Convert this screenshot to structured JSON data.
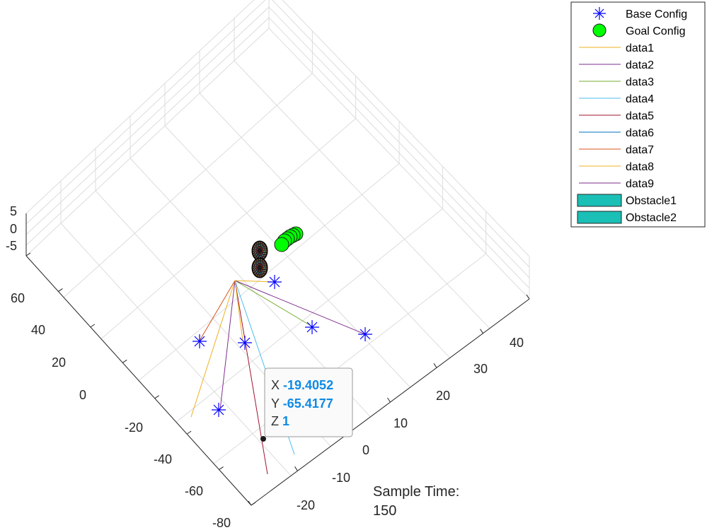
{
  "chart_data": {
    "type": "line3d",
    "view": "oblique top-down 3D axes with grid",
    "grid": true,
    "y_ticks": [
      "60",
      "40",
      "20",
      "0",
      "-20",
      "-40",
      "-60",
      "-80"
    ],
    "x_ticks": [
      "-20",
      "-10",
      "0",
      "10",
      "20",
      "30",
      "40"
    ],
    "z_ticks": [
      "5",
      "0",
      "-5"
    ],
    "legend": {
      "placement": "top-right outside",
      "entries": [
        {
          "label": "Base Config",
          "kind": "marker-asterisk",
          "color": "#0000ff"
        },
        {
          "label": "Goal Config",
          "kind": "marker-circle",
          "color": "#00ff00"
        },
        {
          "label": "data1",
          "kind": "line",
          "color": "#edb120"
        },
        {
          "label": "data2",
          "kind": "line",
          "color": "#7e2f8e"
        },
        {
          "label": "data3",
          "kind": "line",
          "color": "#77ac30"
        },
        {
          "label": "data4",
          "kind": "line",
          "color": "#4dbeee"
        },
        {
          "label": "data5",
          "kind": "line",
          "color": "#a2142f"
        },
        {
          "label": "data6",
          "kind": "line",
          "color": "#0072bd"
        },
        {
          "label": "data7",
          "kind": "line",
          "color": "#d95319"
        },
        {
          "label": "data8",
          "kind": "line",
          "color": "#edb120"
        },
        {
          "label": "data9",
          "kind": "line",
          "color": "#7e2f8e"
        },
        {
          "label": "Obstacle1",
          "kind": "patch",
          "color": "#1abfb5"
        },
        {
          "label": "Obstacle2",
          "kind": "patch",
          "color": "#1abfb5"
        }
      ]
    },
    "datatip": {
      "x_label": "X",
      "x_value": "-19.4052",
      "y_label": "Y",
      "y_value": "-65.4177",
      "z_label": "Z",
      "z_value": "1"
    },
    "annotation": {
      "line1": "Sample Time:",
      "line2": "150"
    }
  }
}
